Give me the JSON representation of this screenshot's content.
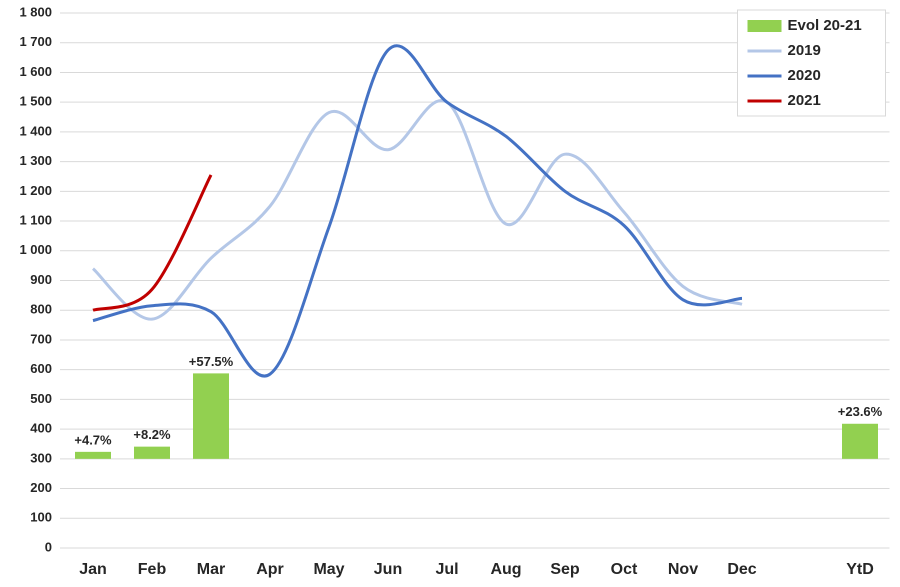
{
  "chart_data": {
    "type": "combo",
    "categories": [
      "Jan",
      "Feb",
      "Mar",
      "Apr",
      "May",
      "Jun",
      "Jul",
      "Aug",
      "Sep",
      "Oct",
      "Nov",
      "Dec",
      null,
      "YtD"
    ],
    "series": [
      {
        "name": "Evol 20-21",
        "type": "bar",
        "axis": "y2",
        "color": "#92d050",
        "values": [
          4.7,
          8.2,
          57.5,
          null,
          null,
          null,
          null,
          null,
          null,
          null,
          null,
          null,
          null,
          23.6
        ],
        "value_labels": [
          "+4.7%",
          "+8.2%",
          "+57.5%",
          null,
          null,
          null,
          null,
          null,
          null,
          null,
          null,
          null,
          null,
          "+23.6%"
        ]
      },
      {
        "name": "2019",
        "type": "line",
        "color": "#b4c7e7",
        "values": [
          940,
          770,
          975,
          1150,
          1465,
          1340,
          1500,
          1090,
          1325,
          1130,
          880,
          820,
          null,
          null
        ]
      },
      {
        "name": "2020",
        "type": "line",
        "color": "#4472c4",
        "values": [
          765,
          815,
          795,
          585,
          1080,
          1675,
          1500,
          1385,
          1200,
          1085,
          835,
          840,
          null,
          null
        ]
      },
      {
        "name": "2021",
        "type": "line",
        "color": "#c00000",
        "values": [
          800,
          870,
          1255,
          null,
          null,
          null,
          null,
          null,
          null,
          null,
          null,
          null,
          null,
          null
        ]
      }
    ],
    "ylim": [
      0,
      1800
    ],
    "yticks": [
      0,
      100,
      200,
      300,
      400,
      500,
      600,
      700,
      800,
      900,
      {
        "value": 1000,
        "label": "1 000"
      },
      {
        "value": 1100,
        "label": "1 100"
      },
      {
        "value": 1200,
        "label": "1 200"
      },
      {
        "value": 1300,
        "label": "1 300"
      },
      {
        "value": 1400,
        "label": "1 400"
      },
      {
        "value": 1500,
        "label": "1 500"
      },
      {
        "value": 1600,
        "label": "1 600"
      },
      {
        "value": 1700,
        "label": "1 700"
      },
      {
        "value": 1800,
        "label": "1 800"
      }
    ],
    "y2lim": [
      -60,
      300
    ],
    "grid": true,
    "legend": "upper right"
  }
}
